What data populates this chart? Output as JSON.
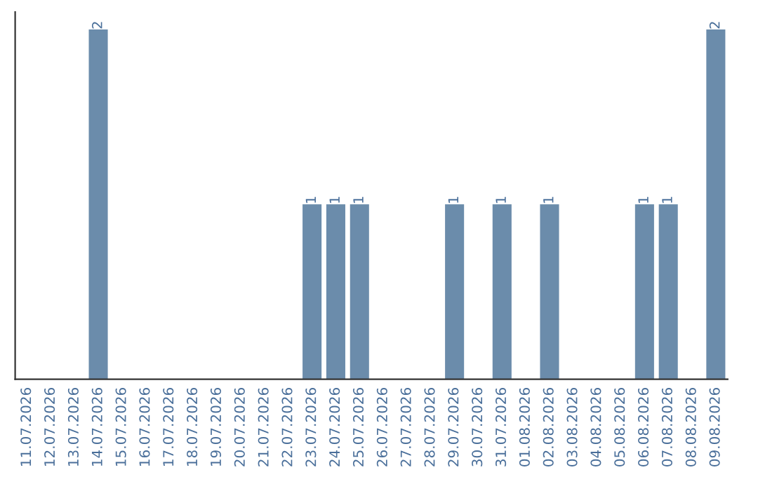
{
  "chart_data": {
    "type": "bar",
    "categories": [
      "11.07.2026",
      "12.07.2026",
      "13.07.2026",
      "14.07.2026",
      "15.07.2026",
      "16.07.2026",
      "17.07.2026",
      "18.07.2026",
      "19.07.2026",
      "20.07.2026",
      "21.07.2026",
      "22.07.2026",
      "23.07.2026",
      "24.07.2026",
      "25.07.2026",
      "26.07.2026",
      "27.07.2026",
      "28.07.2026",
      "29.07.2026",
      "30.07.2026",
      "31.07.2026",
      "01.08.2026",
      "02.08.2026",
      "03.08.2026",
      "04.08.2026",
      "05.08.2026",
      "06.08.2026",
      "07.08.2026",
      "08.08.2026",
      "09.08.2026"
    ],
    "values": [
      0,
      0,
      0,
      2,
      0,
      0,
      0,
      0,
      0,
      0,
      0,
      0,
      1,
      1,
      1,
      0,
      0,
      0,
      1,
      0,
      1,
      0,
      1,
      0,
      0,
      0,
      1,
      1,
      0,
      2
    ],
    "value_labels": [
      null,
      null,
      null,
      "2",
      null,
      null,
      null,
      null,
      null,
      null,
      null,
      null,
      "1",
      "1",
      "1",
      null,
      null,
      null,
      "1",
      null,
      "1",
      null,
      "1",
      null,
      null,
      null,
      "1",
      "1",
      null,
      "2"
    ],
    "color": "#6b8cab",
    "tick_labels": "x",
    "grid": false
  }
}
